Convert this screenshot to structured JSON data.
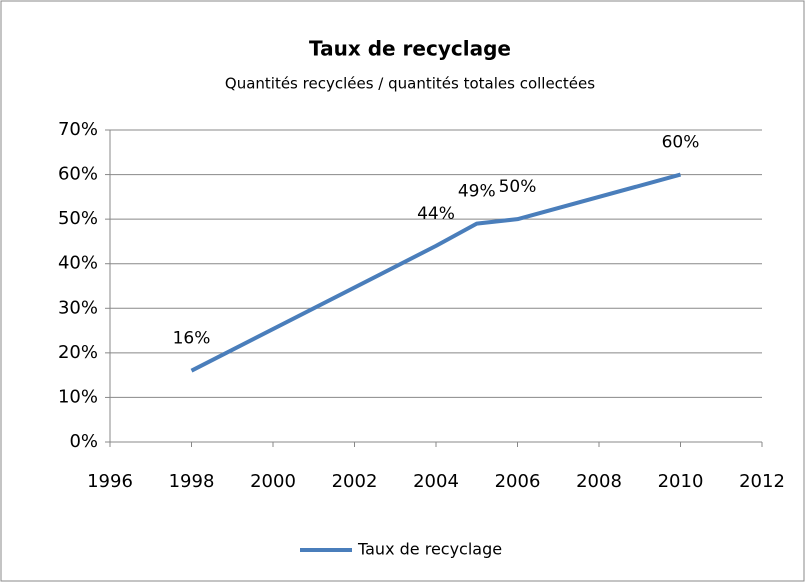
{
  "chart_data": {
    "type": "line",
    "title": "Taux de recyclage",
    "subtitle": "Quantités recyclées / quantités totales collectées",
    "x": [
      1998,
      2004,
      2005,
      2006,
      2010
    ],
    "series": [
      {
        "name": "Taux de recyclage",
        "color": "#4a7ebb",
        "values": [
          16,
          44,
          49,
          50,
          60
        ],
        "value_labels": [
          "16%",
          "44%",
          "49%",
          "50%",
          "60%"
        ]
      }
    ],
    "xlim": [
      1996,
      2012
    ],
    "xticks": [
      1996,
      1998,
      2000,
      2002,
      2004,
      2006,
      2008,
      2010,
      2012
    ],
    "ylim": [
      0,
      70
    ],
    "yticks": [
      {
        "value": 0,
        "label": "0%"
      },
      {
        "value": 10,
        "label": "10%"
      },
      {
        "value": 20,
        "label": "20%"
      },
      {
        "value": 30,
        "label": "30%"
      },
      {
        "value": 40,
        "label": "40%"
      },
      {
        "value": 50,
        "label": "50%"
      },
      {
        "value": 60,
        "label": "60%"
      },
      {
        "value": 70,
        "label": "70%"
      }
    ],
    "grid": true,
    "legend": "bottom"
  }
}
